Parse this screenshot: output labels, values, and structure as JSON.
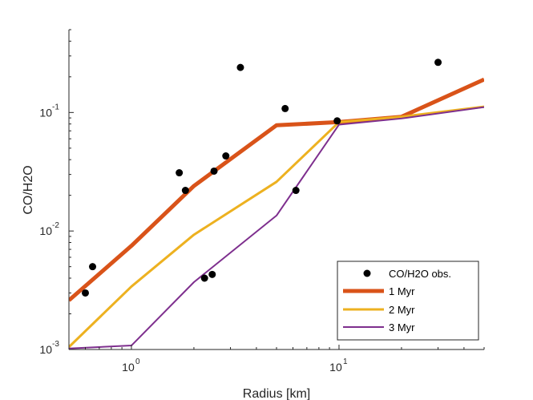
{
  "chart_data": {
    "type": "line",
    "title": "",
    "xlabel": "Radius [km]",
    "ylabel": "CO/H2O",
    "xscale": "log",
    "yscale": "log",
    "xlim": [
      0.5,
      50
    ],
    "ylim": [
      0.001,
      0.5
    ],
    "x_ticks": [
      {
        "value": 1,
        "base": "10",
        "exp": "0"
      },
      {
        "value": 10,
        "base": "10",
        "exp": "1"
      }
    ],
    "y_ticks": [
      {
        "value": 0.001,
        "base": "10",
        "exp": "-3"
      },
      {
        "value": 0.01,
        "base": "10",
        "exp": "-2"
      },
      {
        "value": 0.1,
        "base": "10",
        "exp": "-1"
      }
    ],
    "grid": false,
    "legend_position": "bottom-right",
    "observations": {
      "name": "CO/H2O obs.",
      "color": "#000000",
      "points": [
        {
          "x": 0.6,
          "y": 0.003
        },
        {
          "x": 0.65,
          "y": 0.005
        },
        {
          "x": 1.7,
          "y": 0.031
        },
        {
          "x": 1.82,
          "y": 0.022
        },
        {
          "x": 2.25,
          "y": 0.004
        },
        {
          "x": 2.45,
          "y": 0.0043
        },
        {
          "x": 2.5,
          "y": 0.032
        },
        {
          "x": 2.85,
          "y": 0.043
        },
        {
          "x": 3.35,
          "y": 0.24
        },
        {
          "x": 5.5,
          "y": 0.108
        },
        {
          "x": 6.2,
          "y": 0.022
        },
        {
          "x": 9.8,
          "y": 0.085
        },
        {
          "x": 30,
          "y": 0.265
        }
      ]
    },
    "series": [
      {
        "name": "1 Myr",
        "color": "#D95319",
        "width": 5,
        "x": [
          0.5,
          1,
          2,
          5,
          10,
          20,
          50
        ],
        "y": [
          0.0026,
          0.0075,
          0.024,
          0.078,
          0.083,
          0.092,
          0.19
        ]
      },
      {
        "name": "2 Myr",
        "color": "#EDB120",
        "width": 3,
        "x": [
          0.5,
          1,
          2,
          5,
          10,
          20,
          50
        ],
        "y": [
          0.00105,
          0.0034,
          0.0093,
          0.026,
          0.083,
          0.092,
          0.112
        ]
      },
      {
        "name": "3 Myr",
        "color": "#7E2F8E",
        "width": 2,
        "x": [
          0.5,
          1,
          2,
          5,
          10,
          20,
          50
        ],
        "y": [
          0.00102,
          0.00108,
          0.0037,
          0.0135,
          0.079,
          0.089,
          0.111
        ]
      }
    ]
  }
}
